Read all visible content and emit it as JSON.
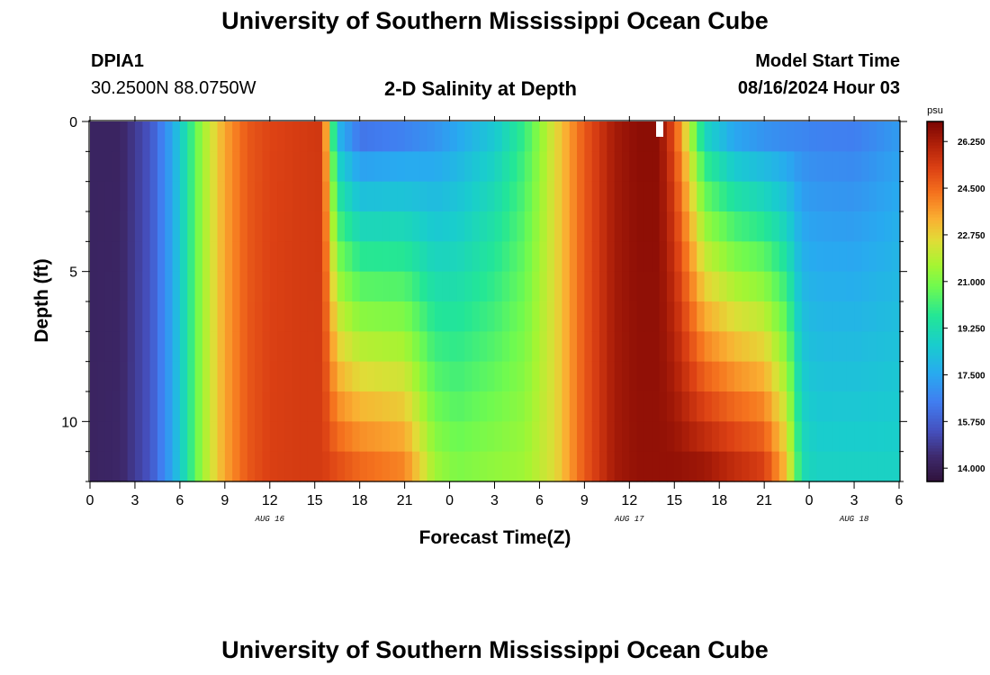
{
  "header": {
    "title": "University of Southern Mississippi Ocean Cube",
    "station_id": "DPIA1",
    "coordinates": "30.2500N  88.0750W",
    "chart_subtitle": "2-D Salinity at Depth",
    "model_start_label": "Model Start Time",
    "model_start_value": "08/16/2024 Hour 03"
  },
  "footer": {
    "title": "University of Southern Mississippi Ocean Cube"
  },
  "chart_data": {
    "type": "heatmap",
    "title": "2-D Salinity at Depth",
    "xlabel": "Forecast Time(Z)",
    "ylabel": "Depth (ft)",
    "x_range_hours": [
      0,
      54
    ],
    "ylim_ft": [
      0,
      12
    ],
    "x_tick_labels": [
      "0",
      "3",
      "6",
      "9",
      "12",
      "15",
      "18",
      "21",
      "0",
      "3",
      "6",
      "9",
      "12",
      "15",
      "18",
      "21",
      "0",
      "3",
      "6"
    ],
    "y_ticks": [
      0,
      5,
      10
    ],
    "date_labels": [
      {
        "text": "AUG 16",
        "hour": 12
      },
      {
        "text": "AUG 17",
        "hour": 36
      },
      {
        "text": "AUG 18",
        "hour": 51
      }
    ],
    "colorbar": {
      "unit": "psu",
      "min": 13.5,
      "max": 27.0,
      "ticks": [
        "14.000",
        "15.750",
        "17.500",
        "19.250",
        "21.000",
        "22.750",
        "24.500",
        "26.250"
      ]
    },
    "depth_levels_ft": [
      0.5,
      1.5,
      2.5,
      3.5,
      4.5,
      5.5,
      6.5,
      7.5,
      8.5,
      9.5,
      10.5,
      11.5
    ],
    "time_step_hours": 0.5,
    "salinity_keypoints": [
      {
        "hour": 0,
        "top": 14.2,
        "bottom": 14.2
      },
      {
        "hour": 2,
        "top": 14.2,
        "bottom": 14.3
      },
      {
        "hour": 4,
        "top": 15.5,
        "bottom": 15.5
      },
      {
        "hour": 5.5,
        "top": 17.5,
        "bottom": 17.5
      },
      {
        "hour": 6.5,
        "top": 19.5,
        "bottom": 19.5
      },
      {
        "hour": 7.5,
        "top": 21.5,
        "bottom": 21.5
      },
      {
        "hour": 9,
        "top": 23.5,
        "bottom": 23.5
      },
      {
        "hour": 10.5,
        "top": 24.8,
        "bottom": 24.8
      },
      {
        "hour": 12,
        "top": 25.2,
        "bottom": 25.3
      },
      {
        "hour": 14,
        "top": 25.4,
        "bottom": 25.4
      },
      {
        "hour": 15.5,
        "top": 25.5,
        "bottom": 25.4
      },
      {
        "hour": 16.5,
        "top": 18.0,
        "bottom": 25.0
      },
      {
        "hour": 18,
        "top": 16.3,
        "bottom": 24.5
      },
      {
        "hour": 21,
        "top": 16.6,
        "bottom": 24.0
      },
      {
        "hour": 23,
        "top": 17.0,
        "bottom": 21.5
      },
      {
        "hour": 24.5,
        "top": 17.5,
        "bottom": 21.0
      },
      {
        "hour": 27,
        "top": 18.5,
        "bottom": 21.3
      },
      {
        "hour": 29,
        "top": 20.0,
        "bottom": 21.5
      },
      {
        "hour": 31,
        "top": 22.5,
        "bottom": 22.5
      },
      {
        "hour": 33,
        "top": 24.8,
        "bottom": 24.8
      },
      {
        "hour": 35,
        "top": 26.3,
        "bottom": 26.3
      },
      {
        "hour": 36.5,
        "top": 26.7,
        "bottom": 26.6
      },
      {
        "hour": 38,
        "top": 26.7,
        "bottom": 26.6
      },
      {
        "hour": 39,
        "top": 25.0,
        "bottom": 26.6
      },
      {
        "hour": 41,
        "top": 19.0,
        "bottom": 26.4
      },
      {
        "hour": 43,
        "top": 17.5,
        "bottom": 25.8
      },
      {
        "hour": 45,
        "top": 17.0,
        "bottom": 25.3
      },
      {
        "hour": 46.5,
        "top": 16.8,
        "bottom": 23.0
      },
      {
        "hour": 47.5,
        "top": 16.7,
        "bottom": 19.2
      },
      {
        "hour": 48.5,
        "top": 16.6,
        "bottom": 18.8
      },
      {
        "hour": 51,
        "top": 16.5,
        "bottom": 18.8
      },
      {
        "hour": 54,
        "top": 17.2,
        "bottom": 18.8
      }
    ]
  }
}
